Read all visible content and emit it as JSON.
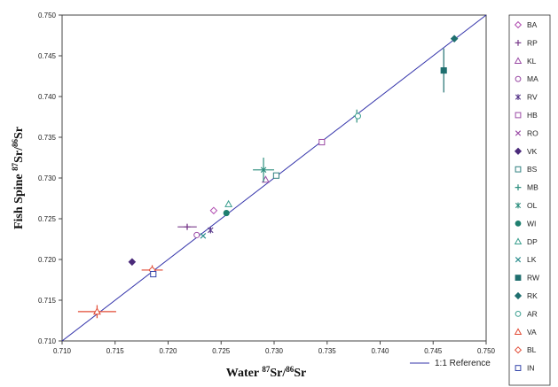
{
  "chart_data": {
    "type": "scatter",
    "xlabel": {
      "base": "Water ",
      "sup1": "87",
      "mid": "Sr/",
      "sup2": "86",
      "end": "Sr"
    },
    "ylabel": {
      "base": "Fish Spine ",
      "sup1": "87",
      "mid": "Sr/",
      "sup2": "86",
      "end": "Sr"
    },
    "xlim": [
      0.71,
      0.75
    ],
    "ylim": [
      0.71,
      0.75
    ],
    "xticks": [
      "0.710",
      "0.715",
      "0.720",
      "0.725",
      "0.730",
      "0.735",
      "0.740",
      "0.745",
      "0.750"
    ],
    "yticks": [
      "0.710",
      "0.715",
      "0.720",
      "0.725",
      "0.730",
      "0.735",
      "0.740",
      "0.745",
      "0.750"
    ],
    "grid": false,
    "legend_position": "right",
    "reference_line": {
      "label": "1:1 Reference",
      "color": "#3333aa",
      "x": [
        0.71,
        0.75
      ],
      "y": [
        0.71,
        0.75
      ]
    },
    "series": [
      {
        "name": "BA",
        "marker": "diamond-open",
        "color": "#b04bb0",
        "points": [
          {
            "x": 0.7243,
            "y": 0.726
          }
        ]
      },
      {
        "name": "RP",
        "marker": "plus",
        "color": "#7a3c8c",
        "points": [
          {
            "x": 0.7218,
            "y": 0.724,
            "xerr": 0.0009,
            "yerr": 0.0003
          }
        ]
      },
      {
        "name": "KL",
        "marker": "triangle-open",
        "color": "#9a4aa5",
        "points": [
          {
            "x": 0.7292,
            "y": 0.7298
          }
        ]
      },
      {
        "name": "MA",
        "marker": "circle-open",
        "color": "#9a4aa5",
        "points": [
          {
            "x": 0.7227,
            "y": 0.723
          }
        ]
      },
      {
        "name": "RV",
        "marker": "asterisk",
        "color": "#5a3a8c",
        "points": [
          {
            "x": 0.724,
            "y": 0.7236,
            "yerr": 0.0003
          }
        ]
      },
      {
        "name": "HB",
        "marker": "square-open",
        "color": "#9a4aa5",
        "points": [
          {
            "x": 0.7345,
            "y": 0.7344
          }
        ]
      },
      {
        "name": "RO",
        "marker": "x",
        "color": "#9a4aa5",
        "points": [
          {
            "x": 0.7186,
            "y": 0.7183
          }
        ]
      },
      {
        "name": "VK",
        "marker": "diamond-filled",
        "color": "#4a2a7a",
        "points": [
          {
            "x": 0.7166,
            "y": 0.7197
          }
        ]
      },
      {
        "name": "BS",
        "marker": "square-open",
        "color": "#2e7f7f",
        "points": [
          {
            "x": 0.7302,
            "y": 0.7303
          }
        ]
      },
      {
        "name": "MB",
        "marker": "plus",
        "color": "#2e8f7f",
        "points": [
          {
            "x": 0.7378,
            "y": 0.7376,
            "yerr": 0.0008
          }
        ]
      },
      {
        "name": "OL",
        "marker": "asterisk",
        "color": "#2e8f7f",
        "points": [
          {
            "x": 0.729,
            "y": 0.731,
            "xerr": 0.001,
            "yerr": 0.0015
          }
        ]
      },
      {
        "name": "WI",
        "marker": "circle-filled",
        "color": "#1f7f6f",
        "points": [
          {
            "x": 0.7255,
            "y": 0.7257
          }
        ]
      },
      {
        "name": "DP",
        "marker": "triangle-open",
        "color": "#3a9f8f",
        "points": [
          {
            "x": 0.7257,
            "y": 0.7268
          }
        ]
      },
      {
        "name": "LK",
        "marker": "x",
        "color": "#2e8f8f",
        "points": [
          {
            "x": 0.7233,
            "y": 0.7229
          }
        ]
      },
      {
        "name": "RW",
        "marker": "square-filled",
        "color": "#1f6f6f",
        "points": [
          {
            "x": 0.746,
            "y": 0.7432,
            "yerr": 0.0027
          }
        ]
      },
      {
        "name": "RK",
        "marker": "diamond-filled",
        "color": "#1f6f6f",
        "points": [
          {
            "x": 0.747,
            "y": 0.7471
          }
        ]
      },
      {
        "name": "AR",
        "marker": "circle-open",
        "color": "#3a9f8f",
        "points": [
          {
            "x": 0.7379,
            "y": 0.7376
          }
        ]
      },
      {
        "name": "VA",
        "marker": "triangle-open",
        "color": "#e24b35",
        "points": [
          {
            "x": 0.7133,
            "y": 0.7136,
            "xerr": 0.0018,
            "yerr": 0.0008
          }
        ]
      },
      {
        "name": "BL",
        "marker": "diamond-open",
        "color": "#e24b35",
        "points": [
          {
            "x": 0.7185,
            "y": 0.7187,
            "xerr": 0.001,
            "yerr": 0.0006
          }
        ]
      },
      {
        "name": "IN",
        "marker": "square-open",
        "color": "#3344aa",
        "points": [
          {
            "x": 0.7186,
            "y": 0.7182
          }
        ]
      }
    ]
  }
}
